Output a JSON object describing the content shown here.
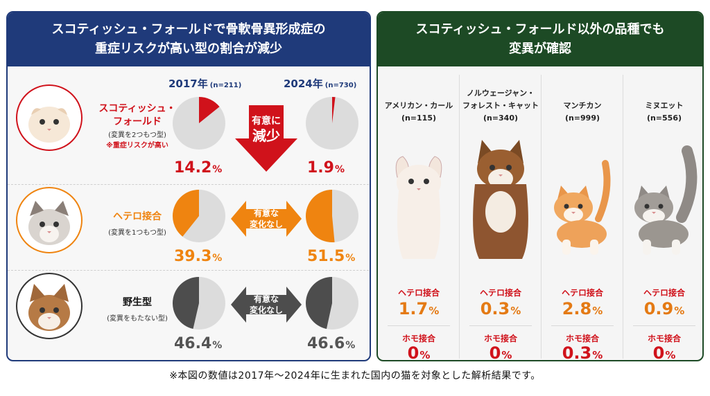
{
  "left": {
    "title_line1": "スコティッシュ・フォールドで骨軟骨異形成症の",
    "title_line2": "重症リスクが高い型の割合が減少",
    "year1": {
      "label": "2017年",
      "n": "(n=211)"
    },
    "year2": {
      "label": "2024年",
      "n": "(n=730)"
    },
    "rows": [
      {
        "name_line1": "スコティッシュ・",
        "name_line2": "フォールド",
        "desc": "(変異を2つもつ型)",
        "note": "※重症リスクが高い",
        "value_2017": "14.2",
        "value_2024": "1.9",
        "unit": "%",
        "arrow_line1": "有意に",
        "arrow_line2": "減少",
        "color": "#d0121b"
      },
      {
        "name_line1": "ヘテロ接合",
        "desc": "(変異を1つもつ型)",
        "value_2017": "39.3",
        "value_2024": "51.5",
        "unit": "%",
        "arrow_line1": "有意な",
        "arrow_line2": "変化なし",
        "color": "#ef8410"
      },
      {
        "name_line1": "野生型",
        "desc": "(変異をもたない型)",
        "value_2017": "46.4",
        "value_2024": "46.6",
        "unit": "%",
        "arrow_line1": "有意な",
        "arrow_line2": "変化なし",
        "color": "#4d4d4d"
      }
    ]
  },
  "right": {
    "title_line1": "スコティッシュ・フォールド以外の品種でも",
    "title_line2": "変異が確認",
    "hetero_label": "ヘテロ接合",
    "homo_label": "ホモ接合",
    "unit": "%",
    "breeds": [
      {
        "name_line1": "アメリカン・カール",
        "name_line2": "",
        "n": "(n=115)",
        "hetero": "1.7",
        "homo": "0"
      },
      {
        "name_line1": "ノルウェージャン・",
        "name_line2": "フォレスト・キャット",
        "n": "(n=340)",
        "hetero": "0.3",
        "homo": "0"
      },
      {
        "name_line1": "マンチカン",
        "name_line2": "",
        "n": "(n=999)",
        "hetero": "2.8",
        "homo": "0.3"
      },
      {
        "name_line1": "ミヌエット",
        "name_line2": "",
        "n": "(n=556)",
        "hetero": "0.9",
        "homo": "0"
      }
    ]
  },
  "chart_data": {
    "type": "pie",
    "categories": [
      "スコティッシュ・フォールド",
      "ヘテロ接合",
      "野生型"
    ],
    "series": [
      {
        "name": "2017年",
        "values": [
          14.2,
          39.3,
          46.4
        ]
      },
      {
        "name": "2024年",
        "values": [
          1.9,
          51.5,
          46.6
        ]
      }
    ]
  },
  "footnote": "※本図の数値は2017年〜2024年に生まれた国内の猫を対象とした解析結果です。",
  "icons": {
    "cat_avatar": "cat-face-icon",
    "arrow_down": "arrow-down-icon",
    "arrow_double": "double-arrow-icon"
  }
}
